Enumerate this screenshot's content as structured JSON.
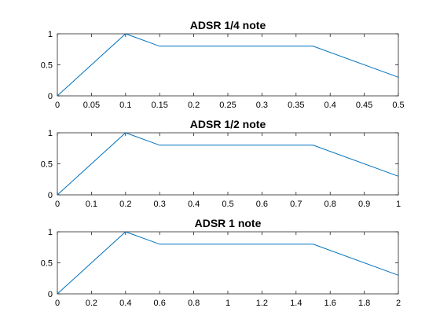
{
  "figure": {
    "background": "#ffffff",
    "axis_color": "#262626",
    "series_color": "#0072BD"
  },
  "chart_data": [
    {
      "type": "line",
      "title": "ADSR 1/4 note",
      "xlabel": "",
      "ylabel": "",
      "xlim": [
        0,
        0.5
      ],
      "ylim": [
        0,
        1
      ],
      "xticks": [
        0,
        0.05,
        0.1,
        0.15,
        0.2,
        0.25,
        0.3,
        0.35,
        0.4,
        0.45,
        0.5
      ],
      "xtick_labels": [
        "0",
        "0.05",
        "0.1",
        "0.15",
        "0.2",
        "0.25",
        "0.3",
        "0.35",
        "0.4",
        "0.45",
        "0.5"
      ],
      "yticks": [
        0,
        0.5,
        1
      ],
      "ytick_labels": [
        "0",
        "0.5",
        "1"
      ],
      "grid": false,
      "series": [
        {
          "x": [
            0,
            0.1,
            0.15,
            0.375,
            0.5
          ],
          "y": [
            0,
            1,
            0.8,
            0.8,
            0.3
          ]
        }
      ]
    },
    {
      "type": "line",
      "title": "ADSR 1/2 note",
      "xlabel": "",
      "ylabel": "",
      "xlim": [
        0,
        1
      ],
      "ylim": [
        0,
        1
      ],
      "xticks": [
        0,
        0.1,
        0.2,
        0.3,
        0.4,
        0.5,
        0.6,
        0.7,
        0.8,
        0.9,
        1
      ],
      "xtick_labels": [
        "0",
        "0.1",
        "0.2",
        "0.3",
        "0.4",
        "0.5",
        "0.6",
        "0.7",
        "0.8",
        "0.9",
        "1"
      ],
      "yticks": [
        0,
        0.5,
        1
      ],
      "ytick_labels": [
        "0",
        "0.5",
        "1"
      ],
      "grid": false,
      "series": [
        {
          "x": [
            0,
            0.2,
            0.3,
            0.75,
            1
          ],
          "y": [
            0,
            1,
            0.8,
            0.8,
            0.3
          ]
        }
      ]
    },
    {
      "type": "line",
      "title": "ADSR 1 note",
      "xlabel": "",
      "ylabel": "",
      "xlim": [
        0,
        2
      ],
      "ylim": [
        0,
        1
      ],
      "xticks": [
        0,
        0.2,
        0.4,
        0.6,
        0.8,
        1,
        1.2,
        1.4,
        1.6,
        1.8,
        2
      ],
      "xtick_labels": [
        "0",
        "0.2",
        "0.4",
        "0.6",
        "0.8",
        "1",
        "1.2",
        "1.4",
        "1.6",
        "1.8",
        "2"
      ],
      "yticks": [
        0,
        0.5,
        1
      ],
      "ytick_labels": [
        "0",
        "0.5",
        "1"
      ],
      "grid": false,
      "series": [
        {
          "x": [
            0,
            0.4,
            0.6,
            1.5,
            2
          ],
          "y": [
            0,
            1,
            0.8,
            0.8,
            0.3
          ]
        }
      ]
    }
  ]
}
